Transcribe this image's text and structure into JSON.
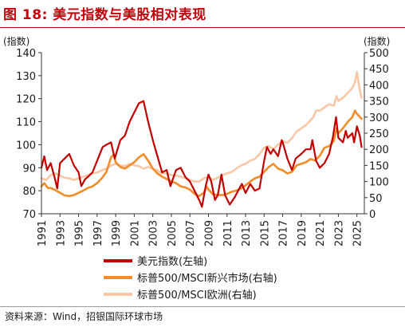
{
  "figure": {
    "title": "图 18: 美元指数与美股相对表现",
    "source": "资料来源：Wind，招银国际环球市场"
  },
  "chart_data": {
    "type": "line",
    "title": "图 18: 美元指数与美股相对表现",
    "left_axis_label": "(指数)",
    "right_axis_label": "(指数)",
    "ylim_left": [
      70,
      140
    ],
    "yticks_left": [
      70,
      80,
      90,
      100,
      110,
      120,
      130,
      140
    ],
    "ylim_right": [
      0,
      500
    ],
    "yticks_right": [
      0,
      50,
      100,
      150,
      200,
      250,
      300,
      350,
      400,
      450,
      500
    ],
    "xlim": [
      1991,
      2025.8
    ],
    "xticks": [
      "1991",
      "1993",
      "1995",
      "1997",
      "1999",
      "2001",
      "2003",
      "2005",
      "2007",
      "2009",
      "2011",
      "2013",
      "2015",
      "2017",
      "2019",
      "2021",
      "2023",
      "2025"
    ],
    "grid": false,
    "legend_position": "bottom-left",
    "series": [
      {
        "name": "美元指数(左轴)",
        "axis": "left",
        "color": "#c00000",
        "points": [
          [
            1991.0,
            90
          ],
          [
            1991.3,
            95
          ],
          [
            1991.6,
            89
          ],
          [
            1992.0,
            92
          ],
          [
            1992.4,
            86
          ],
          [
            1992.7,
            81
          ],
          [
            1993.0,
            92
          ],
          [
            1993.5,
            94
          ],
          [
            1994.0,
            96
          ],
          [
            1994.5,
            91
          ],
          [
            1995.0,
            88
          ],
          [
            1995.3,
            82
          ],
          [
            1995.7,
            85
          ],
          [
            1996.0,
            86
          ],
          [
            1996.5,
            88
          ],
          [
            1997.0,
            93
          ],
          [
            1997.6,
            99
          ],
          [
            1998.0,
            100
          ],
          [
            1998.5,
            101
          ],
          [
            1998.9,
            94
          ],
          [
            1999.5,
            102
          ],
          [
            2000.0,
            104
          ],
          [
            2000.5,
            110
          ],
          [
            2001.0,
            114
          ],
          [
            2001.5,
            118
          ],
          [
            2002.0,
            119
          ],
          [
            2002.5,
            110
          ],
          [
            2003.0,
            102
          ],
          [
            2003.5,
            95
          ],
          [
            2004.0,
            88
          ],
          [
            2004.5,
            89
          ],
          [
            2004.9,
            82
          ],
          [
            2005.5,
            89
          ],
          [
            2006.0,
            90
          ],
          [
            2006.5,
            86
          ],
          [
            2007.0,
            84
          ],
          [
            2007.5,
            80
          ],
          [
            2008.0,
            76
          ],
          [
            2008.3,
            73
          ],
          [
            2008.7,
            82
          ],
          [
            2009.0,
            87
          ],
          [
            2009.3,
            84
          ],
          [
            2009.7,
            76
          ],
          [
            2010.0,
            78
          ],
          [
            2010.4,
            87
          ],
          [
            2010.8,
            78
          ],
          [
            2011.3,
            74
          ],
          [
            2011.8,
            77
          ],
          [
            2012.2,
            80
          ],
          [
            2012.6,
            83
          ],
          [
            2013.0,
            79
          ],
          [
            2013.5,
            83
          ],
          [
            2014.0,
            80
          ],
          [
            2014.5,
            81
          ],
          [
            2015.0,
            93
          ],
          [
            2015.3,
            99
          ],
          [
            2015.7,
            96
          ],
          [
            2016.0,
            98
          ],
          [
            2016.5,
            95
          ],
          [
            2016.9,
            102
          ],
          [
            2017.0,
            101
          ],
          [
            2017.5,
            94
          ],
          [
            2018.0,
            89
          ],
          [
            2018.4,
            94
          ],
          [
            2019.0,
            96
          ],
          [
            2019.5,
            98
          ],
          [
            2020.0,
            98
          ],
          [
            2020.2,
            102
          ],
          [
            2020.6,
            93
          ],
          [
            2021.0,
            90
          ],
          [
            2021.5,
            92
          ],
          [
            2022.0,
            96
          ],
          [
            2022.4,
            103
          ],
          [
            2022.75,
            112
          ],
          [
            2023.0,
            103
          ],
          [
            2023.5,
            101
          ],
          [
            2023.8,
            106
          ],
          [
            2024.0,
            103
          ],
          [
            2024.5,
            105
          ],
          [
            2024.7,
            101
          ],
          [
            2025.0,
            108
          ],
          [
            2025.3,
            104
          ],
          [
            2025.5,
            99
          ]
        ]
      },
      {
        "name": "标普500/MSCI新兴市场(右轴)",
        "axis": "right",
        "color": "#f08c2a",
        "points": [
          [
            1991.0,
            85
          ],
          [
            1991.3,
            95
          ],
          [
            1991.7,
            80
          ],
          [
            1992.0,
            80
          ],
          [
            1992.5,
            73
          ],
          [
            1993.0,
            65
          ],
          [
            1993.5,
            57
          ],
          [
            1994.0,
            55
          ],
          [
            1994.5,
            58
          ],
          [
            1995.0,
            65
          ],
          [
            1995.5,
            72
          ],
          [
            1996.0,
            80
          ],
          [
            1996.5,
            85
          ],
          [
            1997.0,
            95
          ],
          [
            1997.5,
            110
          ],
          [
            1998.0,
            130
          ],
          [
            1998.5,
            175
          ],
          [
            1998.8,
            185
          ],
          [
            1999.0,
            160
          ],
          [
            1999.5,
            145
          ],
          [
            2000.0,
            140
          ],
          [
            2000.5,
            150
          ],
          [
            2001.0,
            160
          ],
          [
            2001.5,
            175
          ],
          [
            2002.0,
            185
          ],
          [
            2002.5,
            165
          ],
          [
            2003.0,
            140
          ],
          [
            2003.5,
            125
          ],
          [
            2004.0,
            115
          ],
          [
            2004.5,
            108
          ],
          [
            2005.0,
            100
          ],
          [
            2005.5,
            95
          ],
          [
            2006.0,
            85
          ],
          [
            2006.5,
            82
          ],
          [
            2007.0,
            75
          ],
          [
            2007.5,
            62
          ],
          [
            2008.0,
            55
          ],
          [
            2008.5,
            65
          ],
          [
            2008.8,
            85
          ],
          [
            2009.0,
            75
          ],
          [
            2009.5,
            60
          ],
          [
            2010.0,
            58
          ],
          [
            2010.5,
            58
          ],
          [
            2011.0,
            62
          ],
          [
            2011.5,
            68
          ],
          [
            2012.0,
            72
          ],
          [
            2012.5,
            78
          ],
          [
            2013.0,
            88
          ],
          [
            2013.5,
            100
          ],
          [
            2014.0,
            110
          ],
          [
            2014.5,
            115
          ],
          [
            2015.0,
            130
          ],
          [
            2015.5,
            145
          ],
          [
            2016.0,
            155
          ],
          [
            2016.5,
            140
          ],
          [
            2017.0,
            135
          ],
          [
            2017.5,
            125
          ],
          [
            2018.0,
            130
          ],
          [
            2018.5,
            150
          ],
          [
            2019.0,
            155
          ],
          [
            2019.5,
            160
          ],
          [
            2020.0,
            170
          ],
          [
            2020.5,
            165
          ],
          [
            2021.0,
            180
          ],
          [
            2021.5,
            205
          ],
          [
            2022.0,
            210
          ],
          [
            2022.5,
            225
          ],
          [
            2022.8,
            265
          ],
          [
            2023.0,
            250
          ],
          [
            2023.5,
            265
          ],
          [
            2024.0,
            285
          ],
          [
            2024.5,
            300
          ],
          [
            2024.8,
            320
          ],
          [
            2025.0,
            310
          ],
          [
            2025.5,
            295
          ]
        ]
      },
      {
        "name": "标普500/MSCI欧洲(右轴)",
        "axis": "right",
        "color": "#f9c7a6",
        "points": [
          [
            1991.0,
            110
          ],
          [
            1991.5,
            105
          ],
          [
            1992.0,
            120
          ],
          [
            1992.5,
            125
          ],
          [
            1993.0,
            118
          ],
          [
            1993.5,
            112
          ],
          [
            1994.0,
            110
          ],
          [
            1994.5,
            105
          ],
          [
            1995.0,
            110
          ],
          [
            1995.5,
            115
          ],
          [
            1996.0,
            120
          ],
          [
            1996.5,
            125
          ],
          [
            1997.0,
            128
          ],
          [
            1997.5,
            135
          ],
          [
            1998.0,
            140
          ],
          [
            1998.5,
            150
          ],
          [
            1999.0,
            155
          ],
          [
            1999.5,
            150
          ],
          [
            2000.0,
            148
          ],
          [
            2000.5,
            155
          ],
          [
            2001.0,
            150
          ],
          [
            2001.5,
            148
          ],
          [
            2002.0,
            140
          ],
          [
            2002.5,
            145
          ],
          [
            2003.0,
            140
          ],
          [
            2003.5,
            135
          ],
          [
            2004.0,
            125
          ],
          [
            2004.5,
            125
          ],
          [
            2005.0,
            120
          ],
          [
            2005.5,
            118
          ],
          [
            2006.0,
            115
          ],
          [
            2006.5,
            110
          ],
          [
            2007.0,
            105
          ],
          [
            2007.5,
            100
          ],
          [
            2008.0,
            100
          ],
          [
            2008.5,
            110
          ],
          [
            2009.0,
            115
          ],
          [
            2009.5,
            105
          ],
          [
            2010.0,
            112
          ],
          [
            2010.5,
            120
          ],
          [
            2011.0,
            125
          ],
          [
            2011.5,
            130
          ],
          [
            2012.0,
            140
          ],
          [
            2012.5,
            150
          ],
          [
            2013.0,
            155
          ],
          [
            2013.5,
            165
          ],
          [
            2014.0,
            170
          ],
          [
            2014.5,
            185
          ],
          [
            2015.0,
            205
          ],
          [
            2015.5,
            210
          ],
          [
            2016.0,
            200
          ],
          [
            2016.5,
            215
          ],
          [
            2017.0,
            225
          ],
          [
            2017.5,
            220
          ],
          [
            2018.0,
            235
          ],
          [
            2018.5,
            255
          ],
          [
            2019.0,
            265
          ],
          [
            2019.5,
            275
          ],
          [
            2020.0,
            290
          ],
          [
            2020.3,
            300
          ],
          [
            2020.6,
            320
          ],
          [
            2021.0,
            320
          ],
          [
            2021.5,
            330
          ],
          [
            2022.0,
            340
          ],
          [
            2022.5,
            335
          ],
          [
            2022.8,
            365
          ],
          [
            2023.0,
            350
          ],
          [
            2023.5,
            360
          ],
          [
            2024.0,
            375
          ],
          [
            2024.5,
            390
          ],
          [
            2024.8,
            410
          ],
          [
            2025.0,
            440
          ],
          [
            2025.3,
            385
          ],
          [
            2025.5,
            360
          ]
        ]
      }
    ]
  }
}
